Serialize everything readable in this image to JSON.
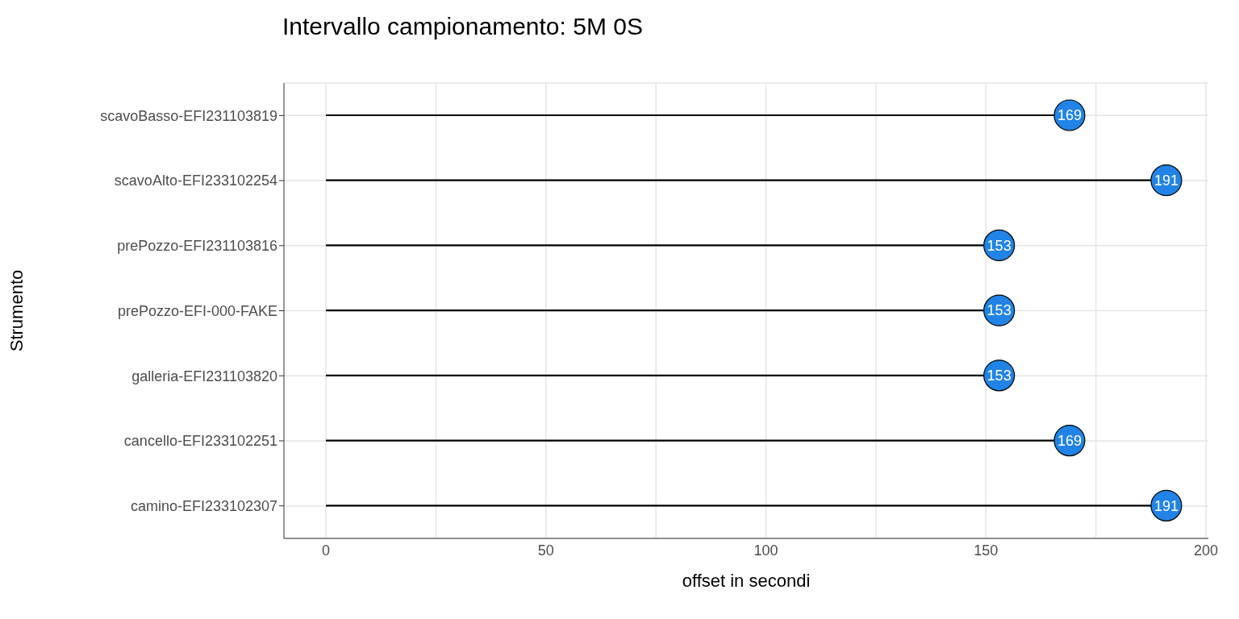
{
  "chart_data": {
    "type": "lollipop",
    "orientation": "horizontal",
    "title": "Intervallo campionamento: 5M 0S",
    "xlabel": "offset in secondi",
    "ylabel": "Strumento",
    "categories": [
      "scavoBasso-EFI231103819",
      "scavoAlto-EFI233102254",
      "prePozzo-EFI231103816",
      "prePozzo-EFI-000-FAKE",
      "galleria-EFI231103820",
      "cancello-EFI233102251",
      "camino-EFI233102307"
    ],
    "values": [
      169,
      191,
      153,
      153,
      153,
      169,
      191
    ],
    "color": "#2183e6",
    "data_labels": true,
    "marker": "circle",
    "xlim": [
      -9.55,
      200.55
    ],
    "xticks": [
      0,
      {
        "value": 25,
        "label": null
      },
      50,
      {
        "value": 75,
        "label": null
      },
      100,
      {
        "value": 125,
        "label": null
      },
      150,
      {
        "value": 175,
        "label": null
      },
      200
    ],
    "grid": true,
    "legend": false
  }
}
